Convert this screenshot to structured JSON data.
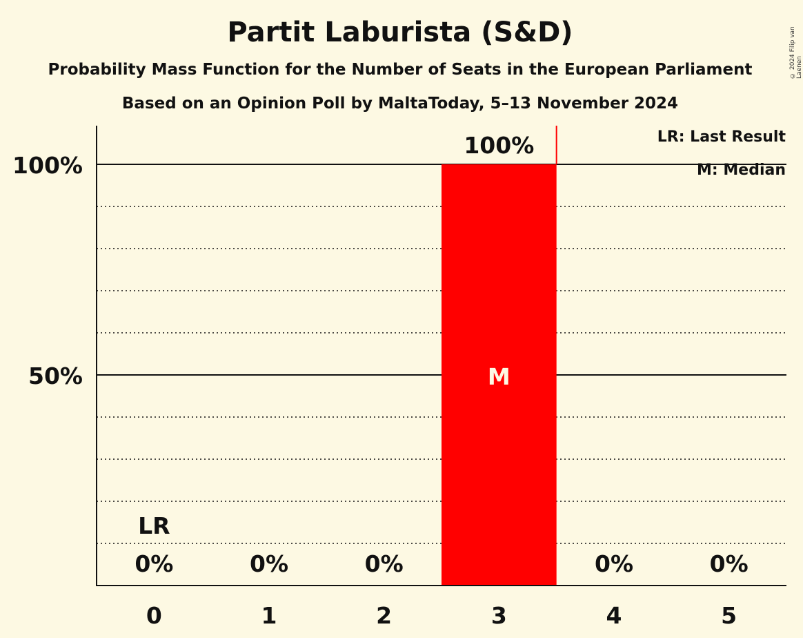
{
  "header": {
    "title": "Partit Laburista (S&D)",
    "subtitle1": "Probability Mass Function for the Number of Seats in the European Parliament",
    "subtitle2": "Based on an Opinion Poll by MaltaToday, 5–13 November 2024",
    "copyright": "© 2024 Filip van Laenen"
  },
  "legend": {
    "lr": "LR: Last Result",
    "median": "M: Median"
  },
  "colors": {
    "background": "#fdf9e3",
    "bar": "#ff0000",
    "text": "#111111"
  },
  "chart_data": {
    "type": "bar",
    "title": "Partit Laburista (S&D)",
    "subtitle": "Probability Mass Function for the Number of Seats in the European Parliament — Based on an Opinion Poll by MaltaToday, 5–13 November 2024",
    "xlabel": "",
    "ylabel": "",
    "categories": [
      "0",
      "1",
      "2",
      "3",
      "4",
      "5"
    ],
    "values": [
      0,
      0,
      0,
      100,
      0,
      0
    ],
    "value_labels": [
      "0%",
      "0%",
      "0%",
      "100%",
      "0%",
      "0%"
    ],
    "ylim": [
      0,
      110
    ],
    "yticks": [
      {
        "value": 50,
        "label": "50%"
      },
      {
        "value": 100,
        "label": "100%"
      }
    ],
    "minor_gridlines": [
      10,
      20,
      30,
      40,
      60,
      70,
      80,
      90
    ],
    "annotations": [
      {
        "category": "0",
        "text": "LR",
        "meaning": "Last Result"
      },
      {
        "category": "3",
        "text": "M",
        "meaning": "Median"
      }
    ],
    "last_result_line": {
      "after_category": "3"
    },
    "legend_position": "top-right"
  }
}
